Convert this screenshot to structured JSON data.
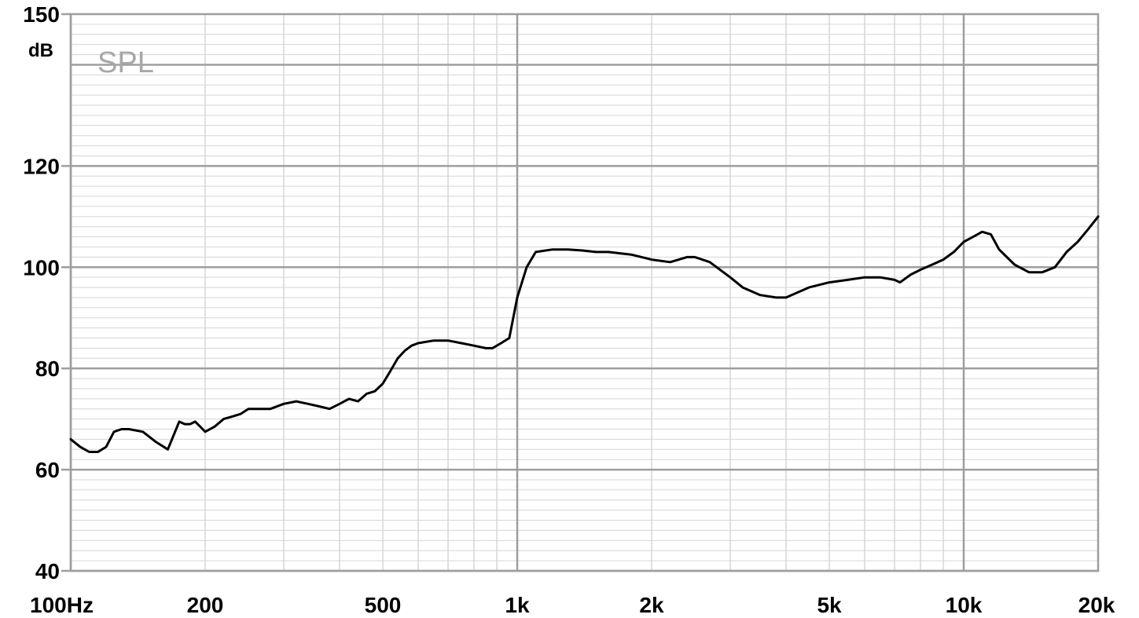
{
  "chart_data": {
    "type": "line",
    "title": "SPL",
    "xlabel": "",
    "ylabel": "dB",
    "x_scale": "log",
    "xlim": [
      100,
      20000
    ],
    "ylim": [
      40,
      150
    ],
    "grid": true,
    "y_ticks": [
      {
        "value": 40,
        "label": "40"
      },
      {
        "value": 60,
        "label": "60"
      },
      {
        "value": 80,
        "label": "80"
      },
      {
        "value": 100,
        "label": "100"
      },
      {
        "value": 120,
        "label": "120"
      },
      {
        "value": 150,
        "label": "150"
      }
    ],
    "x_ticks": [
      {
        "value": 100,
        "label": "100Hz"
      },
      {
        "value": 200,
        "label": "200"
      },
      {
        "value": 500,
        "label": "500"
      },
      {
        "value": 1000,
        "label": "1k"
      },
      {
        "value": 2000,
        "label": "2k"
      },
      {
        "value": 5000,
        "label": "5k"
      },
      {
        "value": 10000,
        "label": "10k"
      },
      {
        "value": 20000,
        "label": "20k"
      }
    ],
    "series": [
      {
        "color": "#000000",
        "x": [
          100,
          105,
          110,
          115,
          120,
          125,
          130,
          135,
          145,
          155,
          165,
          175,
          180,
          185,
          190,
          195,
          200,
          210,
          220,
          230,
          240,
          250,
          265,
          280,
          300,
          320,
          340,
          360,
          380,
          400,
          420,
          440,
          460,
          480,
          500,
          520,
          540,
          560,
          580,
          600,
          650,
          700,
          750,
          800,
          850,
          880,
          920,
          960,
          1000,
          1050,
          1100,
          1200,
          1300,
          1400,
          1500,
          1600,
          1800,
          2000,
          2200,
          2400,
          2500,
          2700,
          3000,
          3200,
          3500,
          3800,
          4000,
          4500,
          5000,
          5500,
          6000,
          6500,
          7000,
          7200,
          7600,
          8000,
          8500,
          9000,
          9500,
          10000,
          10500,
          11000,
          11500,
          12000,
          13000,
          14000,
          15000,
          16000,
          17000,
          18000,
          19000,
          20000
        ],
        "y": [
          66,
          64.5,
          63.5,
          63.5,
          64.5,
          67.5,
          68,
          68,
          67.5,
          65.5,
          64,
          69.5,
          69,
          69,
          69.5,
          68.5,
          67.5,
          68.5,
          70,
          70.5,
          71,
          72,
          72,
          72,
          73,
          73.5,
          73,
          72.5,
          72,
          73,
          74,
          73.5,
          75,
          75.5,
          77,
          79.5,
          82,
          83.5,
          84.5,
          85,
          85.5,
          85.5,
          85,
          84.5,
          84,
          84,
          85,
          86,
          94,
          100,
          103,
          103.5,
          103.5,
          103.3,
          103,
          103,
          102.5,
          101.5,
          101,
          102,
          102,
          101,
          98,
          96,
          94.5,
          94,
          94,
          96,
          97,
          97.5,
          98,
          98,
          97.5,
          97,
          98.5,
          99.5,
          100.5,
          101.5,
          103,
          105,
          106,
          107,
          106.5,
          103.5,
          100.5,
          99,
          99,
          100,
          103,
          105,
          107.5,
          110
        ]
      }
    ]
  }
}
